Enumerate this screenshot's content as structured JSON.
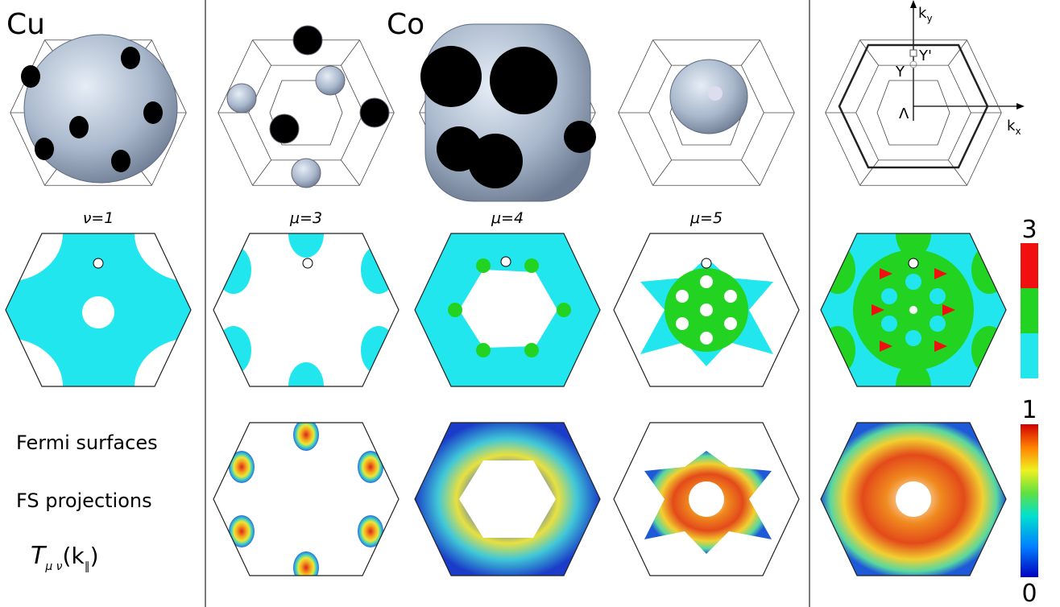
{
  "panels": {
    "cu_label": "Cu",
    "co_label": "Co"
  },
  "axes": {
    "ky": {
      "base": "k",
      "sub": "y"
    },
    "kx": {
      "base": "k",
      "sub": "x"
    },
    "y_prime": "Y'",
    "y": "Y",
    "lambda": "Λ"
  },
  "projection_labels": [
    "ν=1",
    "μ=3",
    "μ=4",
    "μ=5"
  ],
  "colorbars": {
    "discrete": {
      "top": "3"
    },
    "continuous": {
      "top": "1",
      "bottom": "0"
    }
  },
  "legend": {
    "fermi": "Fermi surfaces",
    "projections": "FS projections",
    "transmission": {
      "symbol": "T",
      "sub": "μ ν",
      "arg_open": "(k",
      "arg_sub": "∥",
      "arg_close": ")"
    }
  }
}
